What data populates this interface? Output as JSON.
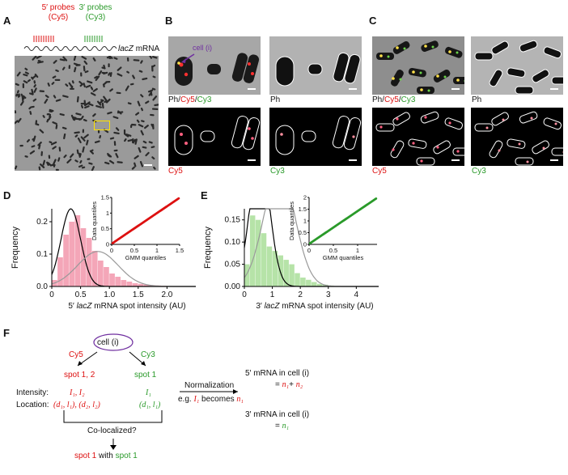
{
  "panels": {
    "A": {
      "label": "A",
      "probe5_title": "5′ probes",
      "probe5_dye": "(Cy5)",
      "probe3_title": "3′ probes",
      "probe3_dye": "(Cy3)",
      "mrna_label_italic": "lacZ",
      "mrna_label": "mRNA"
    },
    "B": {
      "label": "B",
      "cell_callout": "cell (i)",
      "merge_label_ph": "Ph/",
      "merge_label_cy5": "Cy5",
      "merge_label_slash": "/",
      "merge_label_cy3": "Cy3",
      "ph_label": "Ph",
      "cy5_label": "Cy5",
      "cy3_label": "Cy3"
    },
    "C": {
      "label": "C",
      "merge_label_ph": "Ph/",
      "merge_label_cy5": "Cy5",
      "merge_label_slash": "/",
      "merge_label_cy3": "Cy3",
      "ph_label": "Ph",
      "cy5_label": "Cy5",
      "cy3_label": "Cy3"
    },
    "D": {
      "label": "D"
    },
    "E": {
      "label": "E"
    },
    "F": {
      "label": "F",
      "cell": "cell (i)",
      "cy5": "Cy5",
      "cy3": "Cy3",
      "spots_cy5": "spot 1, 2",
      "spots_cy3": "spot 1",
      "intensity_label": "Intensity:",
      "location_label": "Location:",
      "intensity_cy5": "I₁, I₂",
      "location_cy5": "(d₁, l₁), (d₂, l₂)",
      "intensity_cy3": "I₁",
      "location_cy3": "(d₁, l₁)",
      "normalization": "Normalization",
      "example_prefix": "e.g. ",
      "example_I": "I₁",
      "example_mid": " becomes ",
      "example_n": "n₁",
      "colocalized": "Co-localized?",
      "result_spot_red": "spot 1",
      "result_with": " with ",
      "result_spot_green": "spot 1",
      "mrna5_title": "5′ mRNA in cell (i)",
      "mrna5_eq": "= ",
      "mrna5_n1": "n₁",
      "mrna5_plus": "+ ",
      "mrna5_n2": "n₂",
      "mrna3_title": "3′ mRNA in cell (i)",
      "mrna3_eq": "= ",
      "mrna3_n1": "n₁"
    }
  },
  "chart_data": [
    {
      "id": "D-main",
      "type": "bar",
      "xlabel_prefix": "5′ ",
      "xlabel_italic": "lacZ",
      "xlabel_suffix": " mRNA spot intensity (AU)",
      "ylabel": "Frequency",
      "xlim": [
        0,
        2.5
      ],
      "ylim": [
        0,
        0.24
      ],
      "xticks": [
        "0",
        "0.5",
        "1.0",
        "1.5",
        "2.0"
      ],
      "yticks": [
        "0.0",
        "0.1",
        "0.2"
      ],
      "bin_width": 0.1,
      "bins_x": [
        0.05,
        0.15,
        0.25,
        0.35,
        0.45,
        0.55,
        0.65,
        0.75,
        0.85,
        0.95,
        1.05,
        1.15,
        1.25,
        1.35,
        1.45,
        1.55,
        1.65,
        1.75,
        1.85,
        1.95,
        2.05
      ],
      "values": [
        0.02,
        0.09,
        0.16,
        0.2,
        0.22,
        0.18,
        0.15,
        0.11,
        0.08,
        0.06,
        0.04,
        0.03,
        0.02,
        0.015,
        0.01,
        0.008,
        0.006,
        0.004,
        0.003,
        0.002,
        0.001
      ],
      "bar_color": "#f4a6b8",
      "curves": [
        {
          "color": "#000000",
          "mu": 0.33,
          "sigma": 0.17,
          "weight": 0.1
        },
        {
          "color": "#999999",
          "mu": 0.8,
          "sigma": 0.35,
          "weight": 0.045
        }
      ]
    },
    {
      "id": "D-inset",
      "type": "scatter",
      "xlabel": "GMM quantiles",
      "ylabel": "Data quantiles",
      "xlim": [
        0,
        1.5
      ],
      "ylim": [
        0,
        1.5
      ],
      "xticks": [
        "0",
        "0.5",
        "1",
        "1.5"
      ],
      "yticks": [
        "0",
        "0.5",
        "1",
        "1.5"
      ],
      "point_color": "#dd1111"
    },
    {
      "id": "E-main",
      "type": "bar",
      "xlabel_prefix": "3′ ",
      "xlabel_italic": "lacZ",
      "xlabel_suffix": " mRNA spot intensity (AU)",
      "ylabel": "Frequency",
      "xlim": [
        0,
        4.8
      ],
      "ylim": [
        0,
        0.175
      ],
      "xticks": [
        "0",
        "1",
        "2",
        "3",
        "4"
      ],
      "yticks": [
        "0.00",
        "0.05",
        "0.10",
        "0.15"
      ],
      "bin_width": 0.2,
      "bins_x": [
        0.1,
        0.3,
        0.5,
        0.7,
        0.9,
        1.1,
        1.3,
        1.5,
        1.7,
        1.9,
        2.1,
        2.3,
        2.5,
        2.7,
        2.9,
        3.1
      ],
      "values": [
        0.05,
        0.16,
        0.15,
        0.12,
        0.09,
        0.08,
        0.07,
        0.06,
        0.05,
        0.03,
        0.02,
        0.015,
        0.01,
        0.006,
        0.004,
        0.002
      ],
      "bar_color": "#b6e3a8",
      "curves": [
        {
          "color": "#000000",
          "mu": 0.55,
          "sigma": 0.35,
          "weight": 0.125
        },
        {
          "color": "#999999",
          "mu": 1.25,
          "sigma": 0.55,
          "weight": 0.11
        }
      ]
    },
    {
      "id": "E-inset",
      "type": "scatter",
      "xlabel": "GMM quantiles",
      "ylabel": "Data quantiles",
      "xlim": [
        0,
        1.4
      ],
      "ylim": [
        0,
        2.0
      ],
      "xticks": [
        "0",
        "0.5",
        "1"
      ],
      "yticks": [
        "0",
        "0.5",
        "1",
        "1.5",
        "2"
      ],
      "point_color": "#2a9a2a"
    }
  ],
  "colors": {
    "red": "#dd1111",
    "green": "#2a9a2a",
    "purple": "#7030a0"
  }
}
